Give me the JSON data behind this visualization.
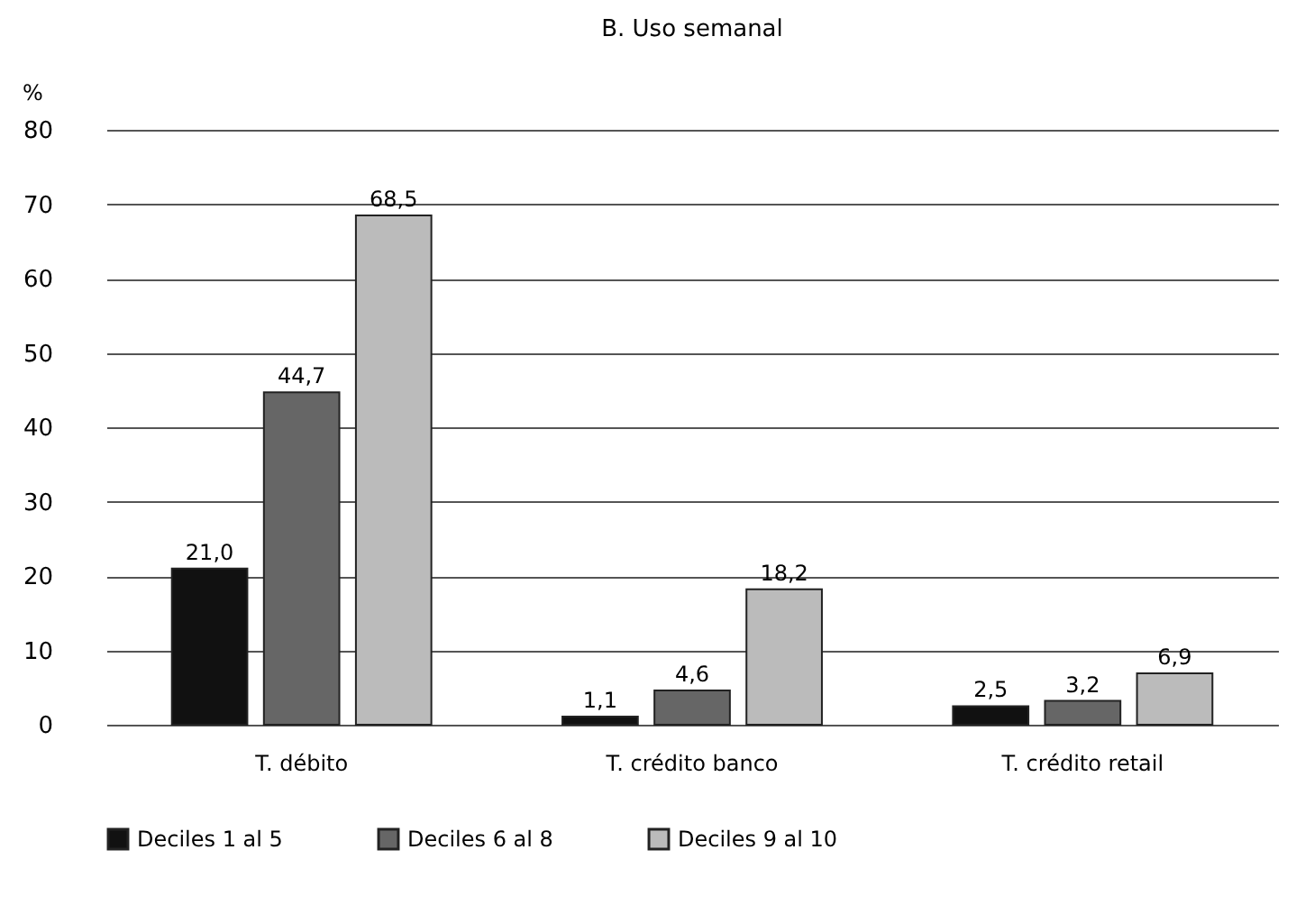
{
  "chart_data": {
    "type": "bar",
    "title": "B. Uso semanal",
    "ylabel": "%",
    "categories": [
      "T. débito",
      "T. crédito banco",
      "T. crédito retail"
    ],
    "series": [
      {
        "name": "Deciles 1 al 5",
        "color": "#111111",
        "values": [
          21.0,
          1.1,
          2.5
        ],
        "value_labels": [
          "21,0",
          "1,1",
          "2,5"
        ]
      },
      {
        "name": "Deciles 6 al 8",
        "color": "#666666",
        "values": [
          44.7,
          4.6,
          3.2
        ],
        "value_labels": [
          "44,7",
          "4,6",
          "3,2"
        ]
      },
      {
        "name": "Deciles 9 al 10",
        "color": "#bbbbbb",
        "values": [
          68.5,
          18.2,
          6.9
        ],
        "value_labels": [
          "68,5",
          "18,2",
          "6,9"
        ]
      }
    ],
    "ylim": [
      0,
      80
    ],
    "yticks": [
      0,
      10,
      20,
      30,
      40,
      50,
      60,
      70,
      80
    ],
    "grid": "y",
    "legend": "bottom"
  }
}
